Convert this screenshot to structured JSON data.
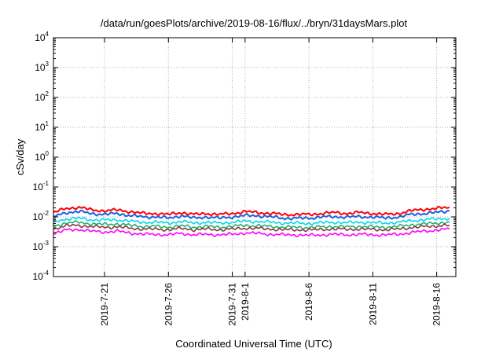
{
  "chart_data": {
    "type": "line",
    "title": "/data/run/goesPlots/archive/2019-08-16/flux/../bryn/31daysMars.plot",
    "xlabel": "Coordinated Universal Time (UTC)",
    "ylabel": "cSv/day",
    "yscale": "log",
    "ylim": [
      0.0001,
      10000
    ],
    "xlim": [
      "2019-07-17",
      "2019-08-17 12:00"
    ],
    "grid": true,
    "legend": "none",
    "yticks": [
      {
        "base": "10",
        "exp": "-4",
        "value": 0.0001
      },
      {
        "base": "10",
        "exp": "-3",
        "value": 0.001
      },
      {
        "base": "10",
        "exp": "-2",
        "value": 0.01
      },
      {
        "base": "10",
        "exp": "-1",
        "value": 0.1
      },
      {
        "base": "10",
        "exp": "0",
        "value": 1
      },
      {
        "base": "10",
        "exp": "1",
        "value": 10
      },
      {
        "base": "10",
        "exp": "2",
        "value": 100
      },
      {
        "base": "10",
        "exp": "3",
        "value": 1000
      },
      {
        "base": "10",
        "exp": "4",
        "value": 10000
      }
    ],
    "xticks": [
      {
        "date": "2019-07-21",
        "label": "2019-7-21"
      },
      {
        "date": "2019-07-26",
        "label": "2019-7-26"
      },
      {
        "date": "2019-07-31",
        "label": "2019-7-31"
      },
      {
        "date": "2019-08-01",
        "label": "2019-8-1"
      },
      {
        "date": "2019-08-06",
        "label": "2019-8-6"
      },
      {
        "date": "2019-08-11",
        "label": "2019-8-11"
      },
      {
        "date": "2019-08-16",
        "label": "2019-8-16"
      }
    ],
    "x": [
      "2019-07-17",
      "2019-07-18",
      "2019-07-19",
      "2019-07-20",
      "2019-07-21",
      "2019-07-22",
      "2019-07-23",
      "2019-07-24",
      "2019-07-25",
      "2019-07-26",
      "2019-07-27",
      "2019-07-28",
      "2019-07-29",
      "2019-07-30",
      "2019-07-31",
      "2019-08-01",
      "2019-08-02",
      "2019-08-03",
      "2019-08-04",
      "2019-08-05",
      "2019-08-06",
      "2019-08-07",
      "2019-08-08",
      "2019-08-09",
      "2019-08-10",
      "2019-08-11",
      "2019-08-12",
      "2019-08-13",
      "2019-08-14",
      "2019-08-15",
      "2019-08-16",
      "2019-08-17"
    ],
    "series": [
      {
        "color": "#ff0000",
        "values": [
          0.014,
          0.019,
          0.021,
          0.017,
          0.016,
          0.017,
          0.015,
          0.013,
          0.013,
          0.012,
          0.014,
          0.012,
          0.013,
          0.012,
          0.013,
          0.015,
          0.014,
          0.013,
          0.012,
          0.012,
          0.012,
          0.013,
          0.014,
          0.013,
          0.014,
          0.013,
          0.012,
          0.013,
          0.016,
          0.018,
          0.019,
          0.021
        ]
      },
      {
        "color": "#1f5fe0",
        "values": [
          0.01,
          0.014,
          0.015,
          0.013,
          0.012,
          0.013,
          0.011,
          0.01,
          0.01,
          0.009,
          0.011,
          0.009,
          0.01,
          0.009,
          0.01,
          0.011,
          0.011,
          0.01,
          0.009,
          0.009,
          0.009,
          0.01,
          0.01,
          0.01,
          0.01,
          0.01,
          0.009,
          0.01,
          0.012,
          0.013,
          0.014,
          0.016
        ]
      },
      {
        "color": "#00d8e8",
        "values": [
          0.0068,
          0.0085,
          0.009,
          0.008,
          0.0078,
          0.008,
          0.0072,
          0.0066,
          0.0066,
          0.0062,
          0.007,
          0.0062,
          0.0066,
          0.0062,
          0.0066,
          0.0072,
          0.007,
          0.0066,
          0.0062,
          0.0062,
          0.006,
          0.0064,
          0.0066,
          0.0064,
          0.0066,
          0.0064,
          0.0062,
          0.0066,
          0.0074,
          0.008,
          0.0085,
          0.009
        ]
      },
      {
        "color": "#20b070",
        "values": [
          0.005,
          0.0062,
          0.0066,
          0.0058,
          0.0056,
          0.0058,
          0.0052,
          0.0048,
          0.0048,
          0.0045,
          0.005,
          0.0045,
          0.0048,
          0.0045,
          0.0048,
          0.0052,
          0.005,
          0.0048,
          0.0045,
          0.0045,
          0.0044,
          0.0046,
          0.0048,
          0.0046,
          0.0048,
          0.0046,
          0.0045,
          0.0048,
          0.0054,
          0.0058,
          0.0062,
          0.0066
        ]
      },
      {
        "color": "#8a3a3a",
        "values": [
          0.004,
          0.005,
          0.0052,
          0.0047,
          0.0045,
          0.0046,
          0.0042,
          0.0039,
          0.0039,
          0.0037,
          0.0041,
          0.0037,
          0.0039,
          0.0037,
          0.0039,
          0.0042,
          0.0041,
          0.0039,
          0.0037,
          0.0037,
          0.0036,
          0.0038,
          0.0039,
          0.0038,
          0.0039,
          0.0038,
          0.0037,
          0.0039,
          0.0044,
          0.0047,
          0.005,
          0.0053
        ]
      },
      {
        "color": "#ff00ff",
        "values": [
          0.0028,
          0.0036,
          0.0038,
          0.0033,
          0.0031,
          0.0033,
          0.0029,
          0.0026,
          0.0026,
          0.0025,
          0.0028,
          0.0025,
          0.0026,
          0.0025,
          0.0026,
          0.0029,
          0.0028,
          0.0026,
          0.0025,
          0.0025,
          0.0024,
          0.0025,
          0.0026,
          0.0025,
          0.0026,
          0.0025,
          0.0025,
          0.0026,
          0.003,
          0.0033,
          0.0036,
          0.0039
        ]
      }
    ]
  }
}
